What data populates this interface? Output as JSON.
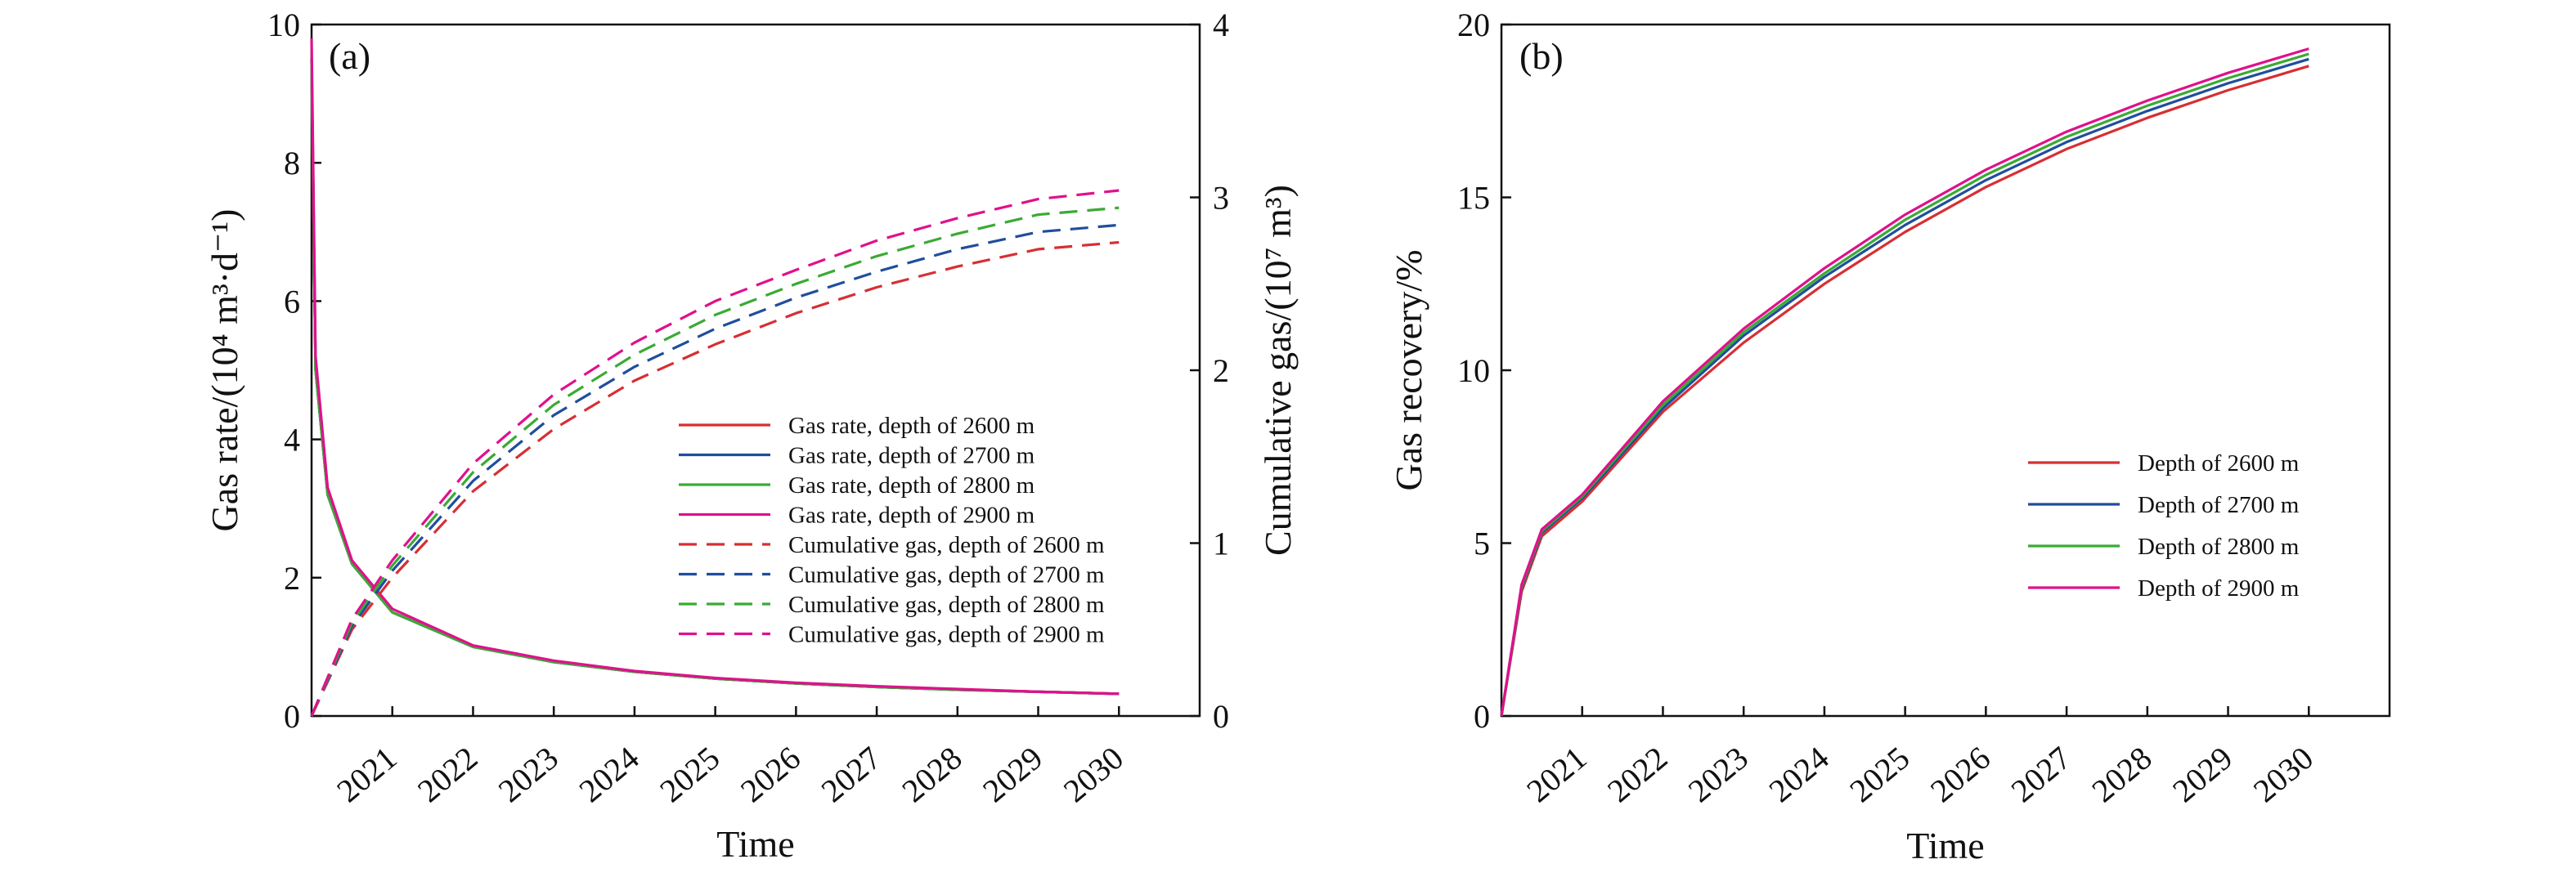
{
  "chart_data": [
    {
      "panel_label": "(a)",
      "type": "line",
      "xlabel": "Time",
      "ylabel": "Gas rate/(10⁴ m³·d⁻¹)",
      "ylabel_right": "Cumulative gas/(10⁷ m³)",
      "x_ticks": [
        "2021",
        "2022",
        "2023",
        "2024",
        "2025",
        "2026",
        "2027",
        "2028",
        "2029",
        "2030"
      ],
      "xlim": [
        2020.0,
        2031.0
      ],
      "ylim": [
        0,
        10
      ],
      "yticks": [
        "0",
        "2",
        "4",
        "6",
        "8",
        "10"
      ],
      "ylim_right": [
        0,
        4
      ],
      "yticks_right": [
        "0",
        "1",
        "2",
        "3",
        "4"
      ],
      "legend_position": "center-right",
      "series": [
        {
          "name": "Gas rate, depth of 2600 m",
          "axis": "left",
          "style": "solid",
          "color": "#d62f34",
          "x": [
            2020.0,
            2020.05,
            2020.2,
            2020.5,
            2021,
            2022,
            2023,
            2024,
            2025,
            2026,
            2027,
            2028,
            2029,
            2030
          ],
          "y": [
            9.5,
            5.0,
            3.2,
            2.2,
            1.5,
            1.0,
            0.78,
            0.64,
            0.54,
            0.47,
            0.42,
            0.38,
            0.35,
            0.32
          ]
        },
        {
          "name": "Gas rate, depth of 2700 m",
          "axis": "left",
          "style": "solid",
          "color": "#1f4e9c",
          "x": [
            2020.0,
            2020.05,
            2020.2,
            2020.5,
            2021,
            2022,
            2023,
            2024,
            2025,
            2026,
            2027,
            2028,
            2029,
            2030
          ],
          "y": [
            9.5,
            5.0,
            3.2,
            2.2,
            1.5,
            1.0,
            0.78,
            0.64,
            0.54,
            0.47,
            0.42,
            0.38,
            0.35,
            0.32
          ]
        },
        {
          "name": "Gas rate, depth of 2800 m",
          "axis": "left",
          "style": "solid",
          "color": "#3aaa35",
          "x": [
            2020.0,
            2020.05,
            2020.2,
            2020.5,
            2021,
            2022,
            2023,
            2024,
            2025,
            2026,
            2027,
            2028,
            2029,
            2030
          ],
          "y": [
            9.5,
            5.0,
            3.2,
            2.2,
            1.5,
            1.0,
            0.78,
            0.64,
            0.54,
            0.47,
            0.42,
            0.38,
            0.35,
            0.32
          ]
        },
        {
          "name": "Gas rate, depth of 2900 m",
          "axis": "left",
          "style": "solid",
          "color": "#e0108c",
          "x": [
            2020.0,
            2020.05,
            2020.2,
            2020.5,
            2021,
            2022,
            2023,
            2024,
            2025,
            2026,
            2027,
            2028,
            2029,
            2030
          ],
          "y": [
            9.8,
            5.2,
            3.3,
            2.25,
            1.55,
            1.02,
            0.8,
            0.65,
            0.55,
            0.48,
            0.43,
            0.39,
            0.35,
            0.32
          ]
        },
        {
          "name": "Cumulative gas, depth of 2600 m",
          "axis": "right",
          "style": "dashed",
          "color": "#d62f34",
          "x": [
            2020.0,
            2020.5,
            2021,
            2022,
            2023,
            2024,
            2025,
            2026,
            2027,
            2028,
            2029,
            2030
          ],
          "y": [
            0,
            0.5,
            0.8,
            1.3,
            1.66,
            1.94,
            2.15,
            2.33,
            2.48,
            2.6,
            2.7,
            2.74
          ]
        },
        {
          "name": "Cumulative gas, depth of 2700 m",
          "axis": "right",
          "style": "dashed",
          "color": "#1f4e9c",
          "x": [
            2020.0,
            2020.5,
            2021,
            2022,
            2023,
            2024,
            2025,
            2026,
            2027,
            2028,
            2029,
            2030
          ],
          "y": [
            0,
            0.52,
            0.84,
            1.36,
            1.74,
            2.02,
            2.24,
            2.42,
            2.57,
            2.7,
            2.8,
            2.84
          ]
        },
        {
          "name": "Cumulative gas, depth of 2800 m",
          "axis": "right",
          "style": "dashed",
          "color": "#3aaa35",
          "x": [
            2020.0,
            2020.5,
            2021,
            2022,
            2023,
            2024,
            2025,
            2026,
            2027,
            2028,
            2029,
            2030
          ],
          "y": [
            0,
            0.54,
            0.87,
            1.41,
            1.8,
            2.09,
            2.32,
            2.5,
            2.66,
            2.79,
            2.9,
            2.94
          ]
        },
        {
          "name": "Cumulative gas, depth of 2900 m",
          "axis": "right",
          "style": "dashed",
          "color": "#e0108c",
          "x": [
            2020.0,
            2020.5,
            2021,
            2022,
            2023,
            2024,
            2025,
            2026,
            2027,
            2028,
            2029,
            2030
          ],
          "y": [
            0,
            0.56,
            0.9,
            1.46,
            1.86,
            2.16,
            2.4,
            2.58,
            2.75,
            2.88,
            2.99,
            3.04
          ]
        }
      ]
    },
    {
      "panel_label": "(b)",
      "type": "line",
      "xlabel": "Time",
      "ylabel": "Gas recovery/%",
      "x_ticks": [
        "2021",
        "2022",
        "2023",
        "2024",
        "2025",
        "2026",
        "2027",
        "2028",
        "2029",
        "2030"
      ],
      "xlim": [
        2020.0,
        2031.0
      ],
      "ylim": [
        0,
        20
      ],
      "yticks": [
        "0",
        "5",
        "10",
        "15",
        "20"
      ],
      "legend_position": "center-right",
      "series": [
        {
          "name": "Depth of 2600 m",
          "style": "solid",
          "color": "#d62f34",
          "x": [
            2020.0,
            2020.25,
            2020.5,
            2021,
            2022,
            2023,
            2024,
            2025,
            2026,
            2027,
            2028,
            2029,
            2030
          ],
          "y": [
            0,
            3.6,
            5.2,
            6.2,
            8.8,
            10.8,
            12.5,
            14.0,
            15.3,
            16.4,
            17.3,
            18.1,
            18.8
          ]
        },
        {
          "name": "Depth of 2700 m",
          "style": "solid",
          "color": "#1f4e9c",
          "x": [
            2020.0,
            2020.25,
            2020.5,
            2021,
            2022,
            2023,
            2024,
            2025,
            2026,
            2027,
            2028,
            2029,
            2030
          ],
          "y": [
            0,
            3.7,
            5.3,
            6.3,
            8.9,
            11.0,
            12.7,
            14.2,
            15.5,
            16.6,
            17.5,
            18.3,
            19.0
          ]
        },
        {
          "name": "Depth of 2800 m",
          "style": "solid",
          "color": "#3aaa35",
          "x": [
            2020.0,
            2020.25,
            2020.5,
            2021,
            2022,
            2023,
            2024,
            2025,
            2026,
            2027,
            2028,
            2029,
            2030
          ],
          "y": [
            0,
            3.75,
            5.35,
            6.35,
            9.0,
            11.1,
            12.8,
            14.35,
            15.65,
            16.75,
            17.65,
            18.45,
            19.15
          ]
        },
        {
          "name": "Depth of 2900 m",
          "style": "solid",
          "color": "#e0108c",
          "x": [
            2020.0,
            2020.25,
            2020.5,
            2021,
            2022,
            2023,
            2024,
            2025,
            2026,
            2027,
            2028,
            2029,
            2030
          ],
          "y": [
            0,
            3.8,
            5.4,
            6.4,
            9.1,
            11.2,
            12.95,
            14.5,
            15.8,
            16.9,
            17.8,
            18.6,
            19.3
          ]
        }
      ]
    }
  ]
}
